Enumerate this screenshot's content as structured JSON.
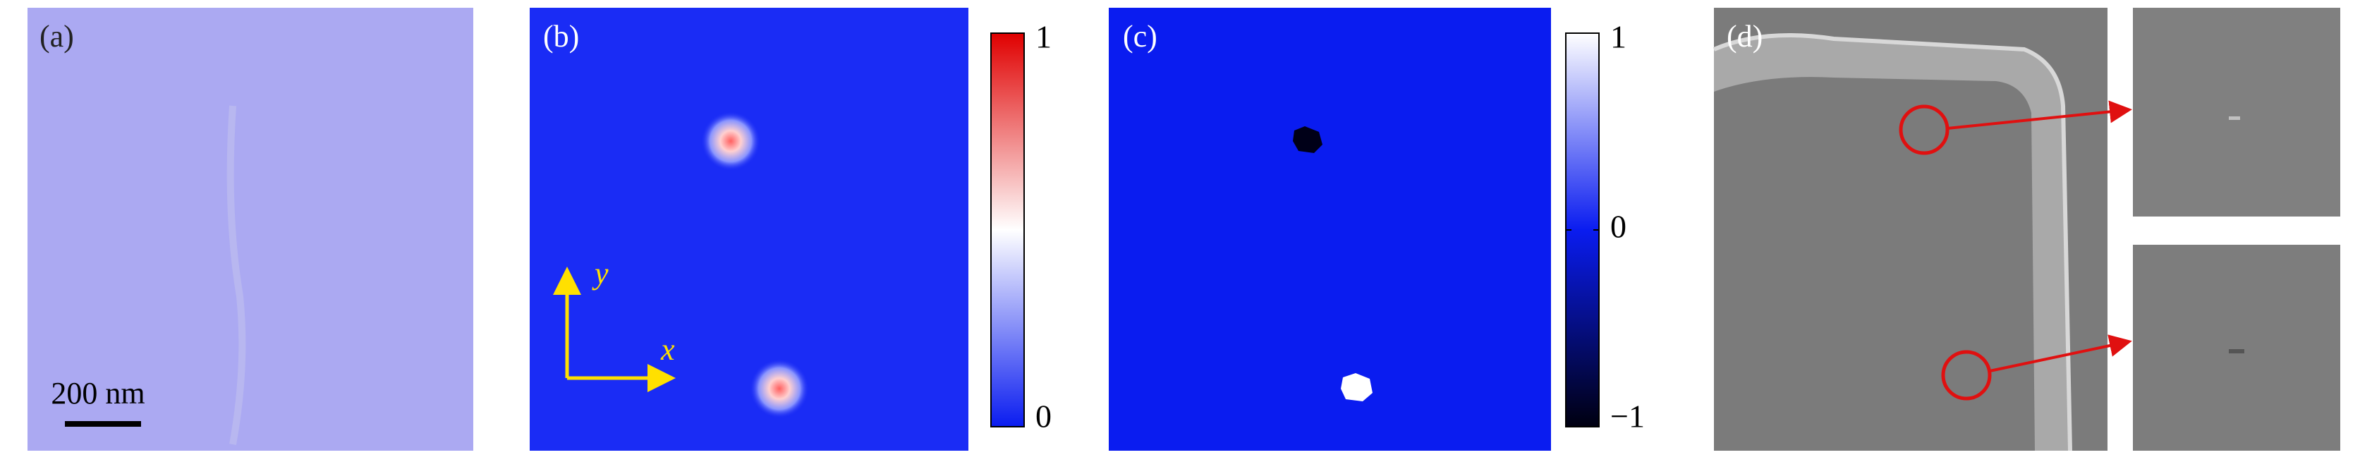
{
  "panels": {
    "a": {
      "label": "(a)",
      "scale_bar": "200 nm"
    },
    "b": {
      "label": "(b)",
      "axis_y": "y",
      "axis_x": "x",
      "colorbar": {
        "lim": [
          0,
          1
        ],
        "ticks": [
          0,
          1
        ]
      }
    },
    "c": {
      "label": "(c)",
      "colorbar": {
        "lim": [
          -1,
          1
        ],
        "ticks": [
          {
            "value": -1,
            "label": "−1"
          },
          0,
          1
        ]
      }
    },
    "d": {
      "label": "(d)"
    }
  }
}
